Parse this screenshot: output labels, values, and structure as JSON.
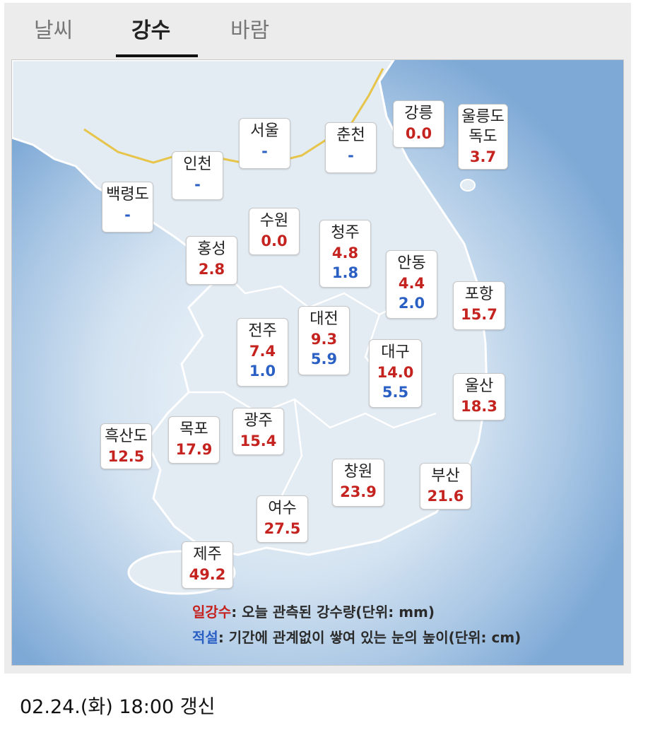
{
  "tabs": [
    {
      "label": "날씨",
      "active": false
    },
    {
      "label": "강수",
      "active": true
    },
    {
      "label": "바람",
      "active": false
    }
  ],
  "colors": {
    "rain": "#c4231f",
    "snow": "#2a5fc4"
  },
  "stations": [
    {
      "name": "강릉",
      "values": [
        {
          "text": "0.0",
          "kind": "rain"
        }
      ]
    },
    {
      "name": "울릉도\n독도",
      "values": [
        {
          "text": "3.7",
          "kind": "rain"
        }
      ]
    },
    {
      "name": "서울",
      "values": [
        {
          "text": "-",
          "kind": "snow"
        }
      ]
    },
    {
      "name": "춘천",
      "values": [
        {
          "text": "-",
          "kind": "snow"
        }
      ]
    },
    {
      "name": "인천",
      "values": [
        {
          "text": "-",
          "kind": "snow"
        }
      ]
    },
    {
      "name": "백령도",
      "values": [
        {
          "text": "-",
          "kind": "snow"
        }
      ]
    },
    {
      "name": "수원",
      "values": [
        {
          "text": "0.0",
          "kind": "rain"
        }
      ]
    },
    {
      "name": "청주",
      "values": [
        {
          "text": "4.8",
          "kind": "rain"
        },
        {
          "text": "1.8",
          "kind": "snow"
        }
      ]
    },
    {
      "name": "홍성",
      "values": [
        {
          "text": "2.8",
          "kind": "rain"
        }
      ]
    },
    {
      "name": "안동",
      "values": [
        {
          "text": "4.4",
          "kind": "rain"
        },
        {
          "text": "2.0",
          "kind": "snow"
        }
      ]
    },
    {
      "name": "포항",
      "values": [
        {
          "text": "15.7",
          "kind": "rain"
        }
      ]
    },
    {
      "name": "대전",
      "values": [
        {
          "text": "9.3",
          "kind": "rain"
        },
        {
          "text": "5.9",
          "kind": "snow"
        }
      ]
    },
    {
      "name": "전주",
      "values": [
        {
          "text": "7.4",
          "kind": "rain"
        },
        {
          "text": "1.0",
          "kind": "snow"
        }
      ]
    },
    {
      "name": "대구",
      "values": [
        {
          "text": "14.0",
          "kind": "rain"
        },
        {
          "text": "5.5",
          "kind": "snow"
        }
      ]
    },
    {
      "name": "울산",
      "values": [
        {
          "text": "18.3",
          "kind": "rain"
        }
      ]
    },
    {
      "name": "흑산도",
      "values": [
        {
          "text": "12.5",
          "kind": "rain"
        }
      ]
    },
    {
      "name": "목포",
      "values": [
        {
          "text": "17.9",
          "kind": "rain"
        }
      ]
    },
    {
      "name": "광주",
      "values": [
        {
          "text": "15.4",
          "kind": "rain"
        }
      ]
    },
    {
      "name": "창원",
      "values": [
        {
          "text": "23.9",
          "kind": "rain"
        }
      ]
    },
    {
      "name": "부산",
      "values": [
        {
          "text": "21.6",
          "kind": "rain"
        }
      ]
    },
    {
      "name": "여수",
      "values": [
        {
          "text": "27.5",
          "kind": "rain"
        }
      ]
    },
    {
      "name": "제주",
      "values": [
        {
          "text": "49.2",
          "kind": "rain"
        }
      ]
    }
  ],
  "legend": {
    "rain_key": "일강수",
    "rain_desc": ": 오늘 관측된 강수량(단위: mm)",
    "snow_key": "적설",
    "snow_desc": ": 기간에 관계없이 쌓여 있는 눈의 높이(단위: cm)"
  },
  "footer": {
    "updated": "02.24.(화) 18:00 갱신"
  }
}
